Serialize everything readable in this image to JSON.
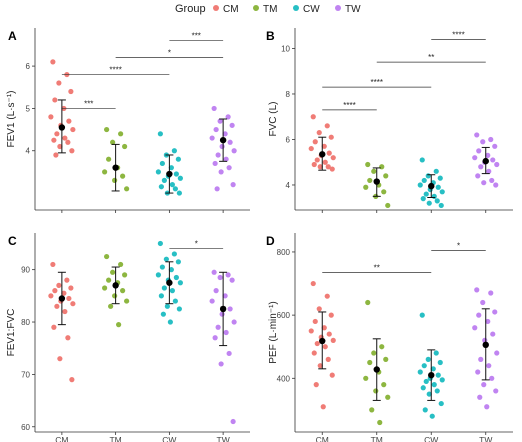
{
  "legend": {
    "title": "Group",
    "entries": [
      {
        "name": "CM",
        "color": "#f07c76"
      },
      {
        "name": "TM",
        "color": "#8db640"
      },
      {
        "name": "CW",
        "color": "#27bfc4"
      },
      {
        "name": "TW",
        "color": "#c084f1"
      }
    ]
  },
  "chart_data": [
    {
      "type": "scatter",
      "panel_letter": "A",
      "ylabel": "FEV1 (L·s⁻¹)",
      "ylim": [
        2.6,
        6.9
      ],
      "yticks": [
        4,
        5,
        6
      ],
      "categories": [
        "CM",
        "TM",
        "CW",
        "TW"
      ],
      "series": [
        {
          "name": "CM",
          "points": [
            6.1,
            5.8,
            5.6,
            5.4,
            5.2,
            5.0,
            4.8,
            4.7,
            4.6,
            4.5,
            4.4,
            4.3,
            4.25,
            4.2,
            4.1,
            4.0,
            3.9
          ],
          "mean": 4.55,
          "ci": [
            3.95,
            5.2
          ]
        },
        {
          "name": "TM",
          "points": [
            4.5,
            4.4,
            4.2,
            4.1,
            3.8,
            3.6,
            3.5,
            3.4,
            3.3,
            3.1
          ],
          "mean": 3.6,
          "ci": [
            3.05,
            4.15
          ]
        },
        {
          "name": "CW",
          "points": [
            4.4,
            4.0,
            3.9,
            3.8,
            3.7,
            3.6,
            3.5,
            3.45,
            3.4,
            3.35,
            3.3,
            3.2,
            3.15,
            3.1,
            3.0,
            3.0
          ],
          "mean": 3.45,
          "ci": [
            3.0,
            3.9
          ]
        },
        {
          "name": "TW",
          "points": [
            5.0,
            4.8,
            4.7,
            4.6,
            4.5,
            4.4,
            4.3,
            4.2,
            4.1,
            4.0,
            3.9,
            3.8,
            3.7,
            3.6,
            3.5,
            3.2,
            3.1
          ],
          "mean": 4.25,
          "ci": [
            3.75,
            4.75
          ]
        }
      ],
      "significance": [
        {
          "from": "CM",
          "to": "TM",
          "y": 5.0,
          "label": "***"
        },
        {
          "from": "CM",
          "to": "CW",
          "y": 5.8,
          "label": "****"
        },
        {
          "from": "TM",
          "to": "TW",
          "y": 6.2,
          "label": "*"
        },
        {
          "from": "CW",
          "to": "TW",
          "y": 6.6,
          "label": "***"
        }
      ]
    },
    {
      "type": "scatter",
      "panel_letter": "B",
      "ylabel": "FVC (L)",
      "ylim": [
        2.9,
        10.9
      ],
      "yticks": [
        4,
        6,
        8,
        10
      ],
      "categories": [
        "CM",
        "TM",
        "CW",
        "TW"
      ],
      "series": [
        {
          "name": "CM",
          "points": [
            7.0,
            6.6,
            6.3,
            6.1,
            5.9,
            5.7,
            5.6,
            5.4,
            5.3,
            5.2,
            5.1,
            5.0,
            4.9,
            4.8,
            4.8,
            4.7
          ],
          "mean": 5.35,
          "ci": [
            4.65,
            6.1
          ]
        },
        {
          "name": "TM",
          "points": [
            4.9,
            4.8,
            4.6,
            4.4,
            4.2,
            4.0,
            3.9,
            3.7,
            3.5,
            3.1
          ],
          "mean": 4.15,
          "ci": [
            3.5,
            4.75
          ]
        },
        {
          "name": "CW",
          "points": [
            5.1,
            4.6,
            4.4,
            4.3,
            4.2,
            4.1,
            4.0,
            3.9,
            3.8,
            3.7,
            3.6,
            3.5,
            3.4,
            3.3,
            3.2,
            3.1
          ],
          "mean": 3.95,
          "ci": [
            3.45,
            4.45
          ]
        },
        {
          "name": "TW",
          "points": [
            6.2,
            6.0,
            5.9,
            5.7,
            5.5,
            5.3,
            5.2,
            5.1,
            5.0,
            4.9,
            4.8,
            4.6,
            4.4,
            4.2,
            4.1,
            4.0
          ],
          "mean": 5.05,
          "ci": [
            4.5,
            5.65
          ]
        }
      ],
      "significance": [
        {
          "from": "CM",
          "to": "TM",
          "y": 7.3,
          "label": "****"
        },
        {
          "from": "CM",
          "to": "CW",
          "y": 8.3,
          "label": "****"
        },
        {
          "from": "TM",
          "to": "TW",
          "y": 9.4,
          "label": "**"
        },
        {
          "from": "CW",
          "to": "TW",
          "y": 10.4,
          "label": "****"
        }
      ]
    },
    {
      "type": "scatter",
      "panel_letter": "C",
      "ylabel": "FEV1:FVC",
      "ylim": [
        59,
        97
      ],
      "yticks": [
        60,
        70,
        80,
        90
      ],
      "categories": [
        "CM",
        "TM",
        "CW",
        "TW"
      ],
      "series": [
        {
          "name": "CM",
          "points": [
            91,
            88,
            87,
            86.5,
            86,
            85.5,
            85,
            84.5,
            84,
            83.5,
            83,
            82,
            79,
            77,
            73,
            69
          ],
          "mean": 84.5,
          "ci": [
            79.5,
            89.5
          ]
        },
        {
          "name": "TM",
          "points": [
            92.5,
            91,
            89.5,
            89,
            88,
            87.5,
            86.5,
            86,
            85,
            84,
            83,
            79.5
          ],
          "mean": 87.0,
          "ci": [
            83.5,
            90.5
          ]
        },
        {
          "name": "CW",
          "points": [
            95,
            93,
            92,
            91.5,
            90.5,
            90,
            89,
            88.5,
            88,
            87.5,
            86.5,
            86,
            85,
            84,
            83,
            82.5,
            81.5,
            80
          ],
          "mean": 87.5,
          "ci": [
            83.5,
            91.5
          ]
        },
        {
          "name": "TW",
          "points": [
            89.5,
            89,
            88.5,
            88,
            86,
            85,
            84,
            82.5,
            81.5,
            80,
            79,
            78,
            77,
            74,
            72,
            61
          ],
          "mean": 82.5,
          "ci": [
            75.5,
            89.5
          ]
        }
      ],
      "significance": [
        {
          "from": "CW",
          "to": "TW",
          "y": 94,
          "label": "*"
        }
      ]
    },
    {
      "type": "scatter",
      "panel_letter": "D",
      "ylabel": "PEF (L·min⁻¹)",
      "ylim": [
        230,
        860
      ],
      "yticks": [
        400,
        600,
        800
      ],
      "categories": [
        "CM",
        "TM",
        "CW",
        "TW"
      ],
      "series": [
        {
          "name": "CM",
          "points": [
            700,
            660,
            620,
            600,
            580,
            560,
            550,
            540,
            530,
            520,
            510,
            500,
            480,
            460,
            440,
            410,
            380,
            310
          ],
          "mean": 518,
          "ci": [
            430,
            610
          ]
        },
        {
          "name": "TM",
          "points": [
            640,
            500,
            480,
            460,
            450,
            420,
            400,
            380,
            360,
            340,
            300,
            260
          ],
          "mean": 428,
          "ci": [
            330,
            525
          ]
        },
        {
          "name": "CW",
          "points": [
            600,
            480,
            460,
            450,
            440,
            430,
            420,
            410,
            400,
            395,
            390,
            380,
            370,
            360,
            350,
            320,
            300,
            280
          ],
          "mean": 410,
          "ci": [
            330,
            490
          ]
        },
        {
          "name": "TW",
          "points": [
            680,
            670,
            640,
            610,
            600,
            580,
            560,
            540,
            520,
            480,
            460,
            440,
            420,
            400,
            380,
            360,
            340,
            310
          ],
          "mean": 506,
          "ci": [
            395,
            620
          ]
        }
      ],
      "significance": [
        {
          "from": "CM",
          "to": "CW",
          "y": 735,
          "label": "**"
        },
        {
          "from": "CW",
          "to": "TW",
          "y": 805,
          "label": "*"
        }
      ]
    }
  ]
}
